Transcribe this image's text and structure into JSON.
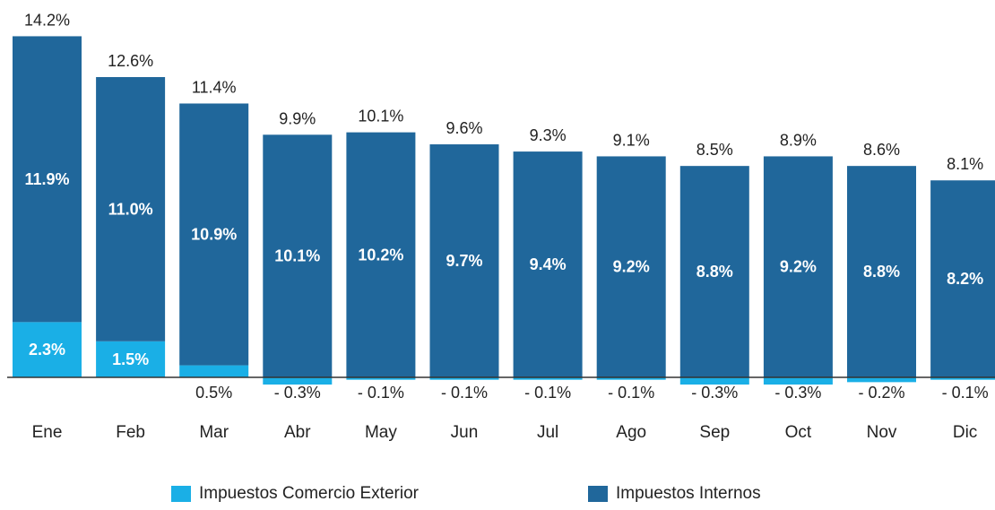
{
  "chart_data": {
    "type": "bar",
    "stacked": true,
    "categories": [
      "Ene",
      "Feb",
      "Mar",
      "Abr",
      "May",
      "Jun",
      "Jul",
      "Ago",
      "Sep",
      "Oct",
      "Nov",
      "Dic"
    ],
    "totals": [
      14.2,
      12.6,
      11.4,
      9.9,
      10.1,
      9.6,
      9.3,
      9.1,
      8.5,
      8.9,
      8.6,
      8.1
    ],
    "totals_text": [
      "14.2%",
      "12.6%",
      "11.4%",
      "9.9%",
      "10.1%",
      "9.6%",
      "9.3%",
      "9.1%",
      "8.5%",
      "8.9%",
      "8.6%",
      "8.1%"
    ],
    "series": [
      {
        "name": "Impuestos Comercio Exterior",
        "color": "#1aafe6",
        "values": [
          2.3,
          1.5,
          0.5,
          -0.3,
          -0.1,
          -0.1,
          -0.1,
          -0.1,
          -0.3,
          -0.3,
          -0.2,
          -0.1
        ],
        "labels": [
          "2.3%",
          "1.5%",
          "0.5%",
          "- 0.3%",
          "- 0.1%",
          "- 0.1%",
          "- 0.1%",
          "- 0.1%",
          "- 0.3%",
          "- 0.3%",
          "- 0.2%",
          "- 0.1%"
        ]
      },
      {
        "name": "Impuestos Internos",
        "color": "#20679b",
        "values": [
          11.9,
          11.0,
          10.9,
          10.1,
          10.2,
          9.7,
          9.4,
          9.2,
          8.8,
          9.2,
          8.8,
          8.2
        ],
        "labels": [
          "11.9%",
          "11.0%",
          "10.9%",
          "10.1%",
          "10.2%",
          "9.7%",
          "9.4%",
          "9.2%",
          "8.8%",
          "9.2%",
          "8.8%",
          "8.2%"
        ]
      }
    ],
    "legend_position": "bottom",
    "grid": false,
    "ylim": [
      -0.3,
      14.2
    ]
  },
  "legend": [
    {
      "label": "Impuestos Comercio Exterior",
      "color": "#1aafe6"
    },
    {
      "label": "Impuestos Internos",
      "color": "#20679b"
    }
  ]
}
